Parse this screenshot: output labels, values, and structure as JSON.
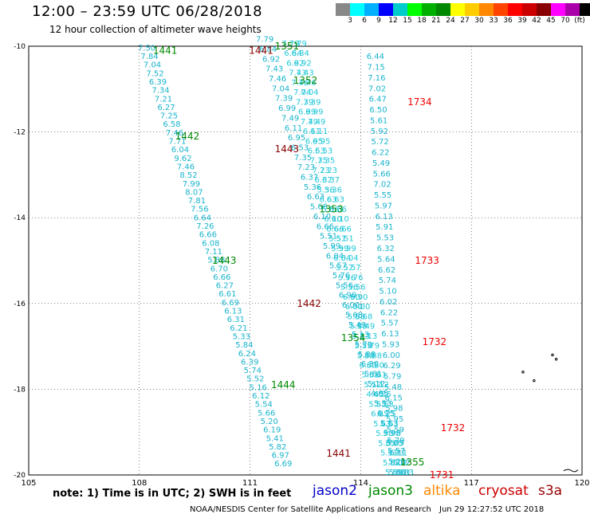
{
  "header": {
    "title": "12:00 – 23:59 UTC 06/28/2018",
    "subtitle": "12 hour collection of altimeter wave heights"
  },
  "colorbar": {
    "colors": [
      "#888888",
      "#00ffff",
      "#00b0ff",
      "#0000ff",
      "#00cccc",
      "#00ff00",
      "#00b000",
      "#008800",
      "#ffff00",
      "#ffcc00",
      "#ff8800",
      "#ff4400",
      "#ff0000",
      "#cc0000",
      "#880000",
      "#ff00ff",
      "#aa00aa",
      "#000000"
    ],
    "labels": [
      "3",
      "6",
      "9",
      "12",
      "15",
      "18",
      "21",
      "24",
      "27",
      "30",
      "33",
      "36",
      "39",
      "42",
      "45",
      "70",
      "(ft)"
    ]
  },
  "axes": {
    "x_ticks": [
      "105",
      "108",
      "111",
      "114",
      "117",
      "120"
    ],
    "y_ticks": [
      "-10",
      "-12",
      "-14",
      "-16",
      "-18",
      "-20"
    ],
    "lon_range": [
      105,
      120
    ],
    "lat_range": [
      -20,
      -10
    ]
  },
  "passes": [
    {
      "satellite": "jason2",
      "pass_times": [
        {
          "lon": 108.7,
          "lat": -10.1,
          "time": "1441"
        },
        {
          "lon": 109.3,
          "lat": -12.1,
          "time": "1442"
        },
        {
          "lon": 110.3,
          "lat": -15.0,
          "time": "1443"
        },
        {
          "lon": 111.9,
          "lat": -17.9,
          "time": "1444"
        }
      ],
      "swh_ft": [
        "7.50",
        "7.84",
        "7.04",
        "7.52",
        "6.39",
        "7.34",
        "7.21",
        "6.27",
        "7.25",
        "6.58",
        "7.46",
        "7.71",
        "6.04",
        "9.62",
        "7.46",
        "8.52",
        "7.99",
        "8.07",
        "7.81",
        "7.56",
        "6.64",
        "7.26",
        "6.66",
        "6.08",
        "7.11",
        "5.88",
        "6.70",
        "6.66",
        "6.27",
        "6.61",
        "6.69",
        "6.13",
        "6.31",
        "6.21",
        "5.33",
        "5.84",
        "6.24",
        "6.39",
        "5.74",
        "5.52",
        "5.16",
        "6.12",
        "5.54",
        "5.66",
        "5.20",
        "6.19",
        "5.41",
        "5.82",
        "6.97",
        "6.69"
      ],
      "start": [
        108.2,
        -10.1
      ],
      "end": [
        111.9,
        -19.8
      ]
    },
    {
      "satellite": "jason3",
      "pass_times": [
        {
          "lon": 112.0,
          "lat": -10.0,
          "time": "1351"
        },
        {
          "lon": 112.5,
          "lat": -10.8,
          "time": "1352"
        },
        {
          "lon": 113.2,
          "lat": -13.8,
          "time": "1353"
        },
        {
          "lon": 113.8,
          "lat": -16.8,
          "time": "1354"
        },
        {
          "lon": 115.4,
          "lat": -19.7,
          "time": "1355"
        }
      ],
      "swh_ft": [
        "7.79",
        "6.84",
        "6.92",
        "7.43",
        "7.46",
        "7.04",
        "7.39",
        "6.99",
        "7.49",
        "6.11",
        "6.95",
        "6.53",
        "7.35",
        "7.23",
        "6.37",
        "5.36",
        "6.63",
        "5.66",
        "6.10",
        "6.66",
        "5.51",
        "5.99",
        "6.04",
        "5.57",
        "5.76",
        "5.56",
        "6.90",
        "6.00",
        "5.68",
        "5.49",
        "5.13",
        "5.79",
        "5.88",
        "6.30",
        "5.61",
        "5.12",
        "4.65",
        "5.53",
        "6.25",
        "5.63",
        "5.98",
        "5.05",
        "5.11",
        "5.02",
        "5.83"
      ],
      "start": [
        111.4,
        -9.9
      ],
      "end": [
        115.2,
        -20.0
      ]
    },
    {
      "satellite": "altika",
      "pass_times": [],
      "swh_ft": [],
      "start": [
        111.6,
        -9.9
      ],
      "end": [
        115.4,
        -20.0
      ]
    },
    {
      "satellite": "cryosat",
      "pass_times": [
        {
          "lon": 112.0,
          "lat": -12.4,
          "time": "1443"
        },
        {
          "lon": 112.6,
          "lat": -16.0,
          "time": "1442"
        },
        {
          "lon": 113.4,
          "lat": -19.5,
          "time": "1441"
        },
        {
          "lon": 111.3,
          "lat": -10.1,
          "time": "1441"
        }
      ],
      "swh_ft": [],
      "start": [
        111.8,
        -9.9
      ],
      "end": [
        115.6,
        -20.0
      ]
    },
    {
      "satellite": "s3a",
      "pass_times": [
        {
          "lon": 115.6,
          "lat": -11.3,
          "time": "1734"
        },
        {
          "lon": 115.8,
          "lat": -15.0,
          "time": "1733"
        },
        {
          "lon": 116.0,
          "lat": -16.9,
          "time": "1732"
        },
        {
          "lon": 116.5,
          "lat": -18.9,
          "time": "1732"
        },
        {
          "lon": 116.2,
          "lat": -20.0,
          "time": "1731"
        }
      ],
      "swh_ft": [
        "6.44",
        "7.15",
        "7.16",
        "7.02",
        "6.47",
        "6.50",
        "5.61",
        "5.92",
        "5.72",
        "6.22",
        "5.49",
        "5.66",
        "7.02",
        "5.55",
        "5.97",
        "6.13",
        "5.91",
        "5.53",
        "6.32",
        "5.64",
        "6.62",
        "5.74",
        "5.10",
        "6.02",
        "6.22",
        "5.57",
        "6.13",
        "5.93",
        "6.00",
        "6.29",
        "5.79",
        "5.48",
        "6.15",
        "5.98",
        "5.95",
        "5.59",
        "5.79",
        "5.57",
        "5.26",
        "5.40"
      ],
      "start": [
        114.4,
        -10.3
      ],
      "end": [
        115.0,
        -20.0
      ]
    }
  ],
  "satellite_legend": [
    {
      "name": "jason2",
      "color": "#0000cc"
    },
    {
      "name": "jason3",
      "color": "#008800"
    },
    {
      "name": "altika",
      "color": "#ff8800"
    },
    {
      "name": "cryosat",
      "color": "#cc0000"
    },
    {
      "name": "s3a",
      "color": "#990000"
    }
  ],
  "note": "note:  1) Time is in UTC;  2) SWH is in feet",
  "footer": {
    "credit": "NOAA/NESDIS Center for Satellite Applications and Research",
    "generated": "Jun 29 12:27:52 UTC 2018"
  }
}
